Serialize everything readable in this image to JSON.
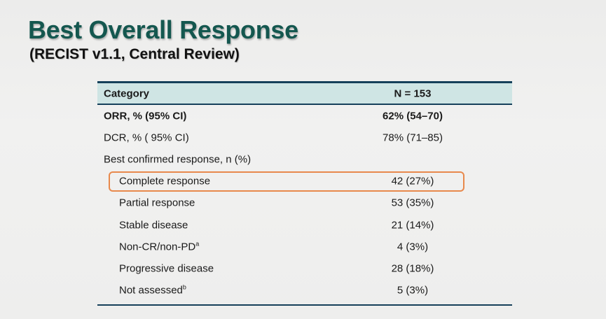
{
  "slide": {
    "title": "Best Overall Response",
    "subtitle": "(RECIST v1.1, Central Review)"
  },
  "table": {
    "headers": {
      "category": "Category",
      "n": "N = 153"
    },
    "rows": [
      {
        "label": "ORR, % (95% CI)",
        "value": "62% (54–70)"
      },
      {
        "label": "DCR, % ( 95% CI)",
        "value": "78% (71–85)"
      },
      {
        "label": "Best confirmed response, n (%)",
        "value": ""
      },
      {
        "label": "Complete response",
        "value": "42 (27%)"
      },
      {
        "label": "Partial response",
        "value": "53 (35%)"
      },
      {
        "label": "Stable disease",
        "value": "21 (14%)"
      },
      {
        "label": "Non-CR/non-PD",
        "footnote": "a",
        "value": "4 (3%)"
      },
      {
        "label": "Progressive disease",
        "value": "28 (18%)"
      },
      {
        "label": "Not assessed",
        "footnote": "b",
        "value": "5 (3%)"
      }
    ]
  },
  "colors": {
    "title": "#14574f",
    "header_bg": "#cfe5e4",
    "rule": "#15405a",
    "highlight": "#e8894c"
  }
}
